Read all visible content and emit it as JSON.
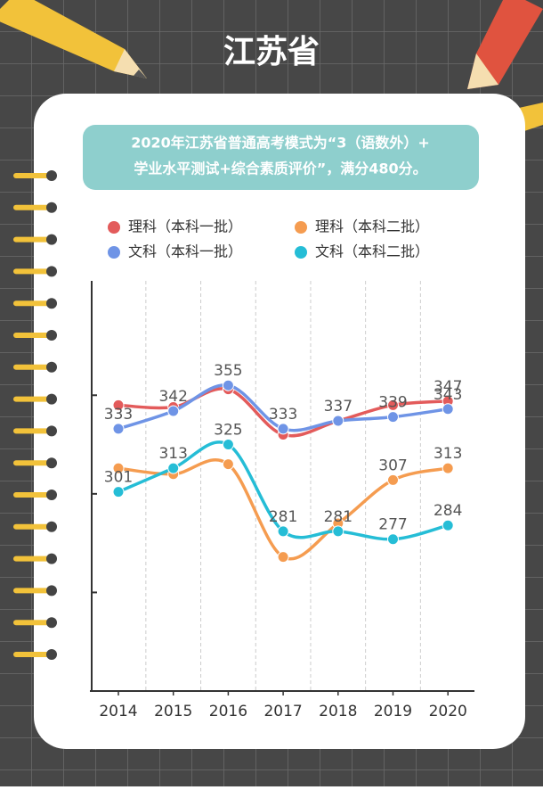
{
  "header": {
    "title": "江苏省"
  },
  "note": [
    "2020年江苏省普通高考模式为“3（语数外）+",
    "学业水平测试+综合素质评价”，满分480分。"
  ],
  "chart_data": {
    "type": "line",
    "categories": [
      "2014",
      "2015",
      "2016",
      "2017",
      "2018",
      "2019",
      "2020"
    ],
    "series": [
      {
        "name": "理科（本科一批）",
        "color": "#e35b5b",
        "values": [
          345,
          344,
          353,
          330,
          337,
          345,
          347
        ],
        "labeled_points": [
          6
        ]
      },
      {
        "name": "理科（本科二批）",
        "color": "#f59c50",
        "values": [
          313,
          310,
          315,
          268,
          285,
          307,
          313
        ],
        "labeled_points": [
          5,
          6
        ]
      },
      {
        "name": "文科（本科一批）",
        "color": "#6f94e6",
        "values": [
          333,
          342,
          355,
          333,
          337,
          339,
          343
        ],
        "labeled_points": [
          0,
          1,
          2,
          3,
          4,
          5,
          6
        ]
      },
      {
        "name": "文科（本科二批）",
        "color": "#25bdd6",
        "values": [
          301,
          313,
          325,
          281,
          281,
          277,
          284
        ],
        "labeled_points": [
          0,
          1,
          2,
          3,
          4,
          5,
          6
        ]
      }
    ],
    "ylim": [
      200,
      408
    ],
    "yticks": [
      250,
      300,
      350
    ],
    "grid": true
  }
}
